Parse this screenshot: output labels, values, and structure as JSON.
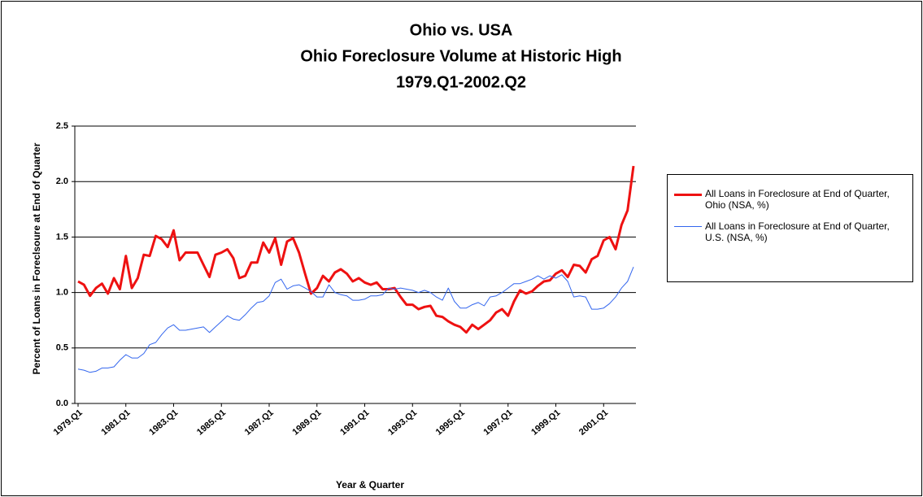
{
  "chart_data": {
    "type": "line",
    "title": [
      "Ohio vs. USA",
      "Ohio Foreclosure Volume at Historic High",
      "1979.Q1-2002.Q2"
    ],
    "x_label": "Year & Quarter",
    "y_label": "Percent of Loans in Foreclsoure at End of Quarter",
    "categories": [
      "1979.Q1",
      null,
      null,
      null,
      null,
      null,
      null,
      null,
      "1981.Q1",
      null,
      null,
      null,
      null,
      null,
      null,
      null,
      "1983.Q1",
      null,
      null,
      null,
      null,
      null,
      null,
      null,
      "1985.Q1",
      null,
      null,
      null,
      null,
      null,
      null,
      null,
      "1987.Q1",
      null,
      null,
      null,
      null,
      null,
      null,
      null,
      "1989.Q1",
      null,
      null,
      null,
      null,
      null,
      null,
      null,
      "1991.Q1",
      null,
      null,
      null,
      null,
      null,
      null,
      null,
      "1993.Q1",
      null,
      null,
      null,
      null,
      null,
      null,
      null,
      "1995.Q1",
      null,
      null,
      null,
      null,
      null,
      null,
      null,
      "1997.Q1",
      null,
      null,
      null,
      null,
      null,
      null,
      null,
      "1999.Q1",
      null,
      null,
      null,
      null,
      null,
      null,
      null,
      "2001.Q1",
      null,
      null,
      null,
      null,
      null
    ],
    "series": [
      {
        "name": "All Loans in Foreclosure at End of Quarter, Ohio (NSA, %)",
        "color": "#ee1111",
        "width": 3,
        "values": [
          1.1,
          1.07,
          0.97,
          1.04,
          1.08,
          0.99,
          1.13,
          1.03,
          1.33,
          1.04,
          1.13,
          1.34,
          1.33,
          1.51,
          1.48,
          1.41,
          1.56,
          1.29,
          1.36,
          1.36,
          1.36,
          1.25,
          1.14,
          1.34,
          1.36,
          1.39,
          1.31,
          1.13,
          1.15,
          1.27,
          1.27,
          1.45,
          1.36,
          1.49,
          1.25,
          1.46,
          1.49,
          1.36,
          1.17,
          0.99,
          1.04,
          1.15,
          1.1,
          1.18,
          1.21,
          1.17,
          1.1,
          1.13,
          1.09,
          1.07,
          1.09,
          1.03,
          1.03,
          1.04,
          0.96,
          0.89,
          0.89,
          0.85,
          0.87,
          0.88,
          0.79,
          0.78,
          0.74,
          0.71,
          0.69,
          0.64,
          0.71,
          0.67,
          0.71,
          0.75,
          0.82,
          0.85,
          0.79,
          0.92,
          1.02,
          0.99,
          1.01,
          1.06,
          1.1,
          1.11,
          1.17,
          1.2,
          1.14,
          1.25,
          1.24,
          1.18,
          1.3,
          1.33,
          1.47,
          1.5,
          1.39,
          1.61,
          1.74,
          2.14
        ]
      },
      {
        "name": "All Loans in Foreclosure at End of Quarter, U.S. (NSA, %)",
        "color": "#3366ee",
        "width": 1,
        "values": [
          0.31,
          0.3,
          0.28,
          0.29,
          0.32,
          0.32,
          0.33,
          0.39,
          0.44,
          0.41,
          0.41,
          0.45,
          0.53,
          0.55,
          0.62,
          0.68,
          0.71,
          0.66,
          0.66,
          0.67,
          0.68,
          0.69,
          0.64,
          0.69,
          0.74,
          0.79,
          0.76,
          0.75,
          0.8,
          0.86,
          0.91,
          0.92,
          0.97,
          1.09,
          1.12,
          1.03,
          1.06,
          1.07,
          1.04,
          1.01,
          0.96,
          0.96,
          1.07,
          1.0,
          0.98,
          0.97,
          0.93,
          0.93,
          0.94,
          0.97,
          0.97,
          0.98,
          1.04,
          1.03,
          1.04,
          1.03,
          1.02,
          1.0,
          1.02,
          1.0,
          0.96,
          0.93,
          1.04,
          0.92,
          0.86,
          0.86,
          0.89,
          0.91,
          0.88,
          0.96,
          0.97,
          1.0,
          1.04,
          1.08,
          1.08,
          1.1,
          1.12,
          1.15,
          1.12,
          1.15,
          1.13,
          1.16,
          1.1,
          0.96,
          0.97,
          0.96,
          0.85,
          0.85,
          0.86,
          0.9,
          0.96,
          1.04,
          1.1,
          1.23
        ]
      }
    ],
    "ylim": [
      0,
      2.5
    ],
    "yticks": [
      {
        "value": 0,
        "label": "0.0"
      },
      0.5,
      {
        "value": 1,
        "label": "1.0"
      },
      1.5,
      {
        "value": 2,
        "label": "2.0"
      },
      2.5
    ],
    "grid": true,
    "legend": "right"
  }
}
